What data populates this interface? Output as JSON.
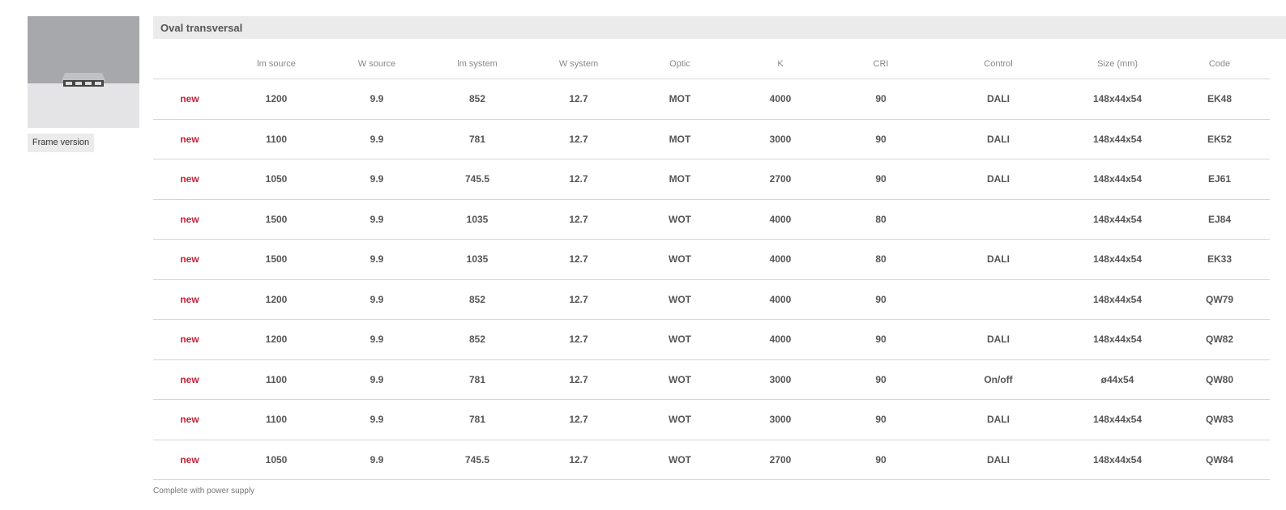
{
  "product": {
    "image": "lamp-product-image",
    "variant_label": "Frame version"
  },
  "section": {
    "title": "Oval transversal"
  },
  "table": {
    "headers": [
      "",
      "lm source",
      "W source",
      "lm system",
      "W system",
      "Optic",
      "K",
      "CRI",
      "Control",
      "Size (mm)",
      "Code"
    ],
    "rows": [
      [
        "new",
        "1200",
        "9.9",
        "852",
        "12.7",
        "MOT",
        "4000",
        "90",
        "DALI",
        "148x44x54",
        "EK48"
      ],
      [
        "new",
        "1100",
        "9.9",
        "781",
        "12.7",
        "MOT",
        "3000",
        "90",
        "DALI",
        "148x44x54",
        "EK52"
      ],
      [
        "new",
        "1050",
        "9.9",
        "745.5",
        "12.7",
        "MOT",
        "2700",
        "90",
        "DALI",
        "148x44x54",
        "EJ61"
      ],
      [
        "new",
        "1500",
        "9.9",
        "1035",
        "12.7",
        "WOT",
        "4000",
        "80",
        "",
        "148x44x54",
        "EJ84"
      ],
      [
        "new",
        "1500",
        "9.9",
        "1035",
        "12.7",
        "WOT",
        "4000",
        "80",
        "DALI",
        "148x44x54",
        "EK33"
      ],
      [
        "new",
        "1200",
        "9.9",
        "852",
        "12.7",
        "WOT",
        "4000",
        "90",
        "",
        "148x44x54",
        "QW79"
      ],
      [
        "new",
        "1200",
        "9.9",
        "852",
        "12.7",
        "WOT",
        "4000",
        "90",
        "DALI",
        "148x44x54",
        "QW82"
      ],
      [
        "new",
        "1100",
        "9.9",
        "781",
        "12.7",
        "WOT",
        "3000",
        "90",
        "On/off",
        "ø44x54",
        "QW80"
      ],
      [
        "new",
        "1100",
        "9.9",
        "781",
        "12.7",
        "WOT",
        "3000",
        "90",
        "DALI",
        "148x44x54",
        "QW83"
      ],
      [
        "new",
        "1050",
        "9.9",
        "745.5",
        "12.7",
        "WOT",
        "2700",
        "90",
        "DALI",
        "148x44x54",
        "QW84"
      ]
    ]
  },
  "footer": {
    "note": "Complete with power supply"
  },
  "colors": {
    "new_badge": "#c0243a",
    "section_bg": "#ebebeb"
  }
}
